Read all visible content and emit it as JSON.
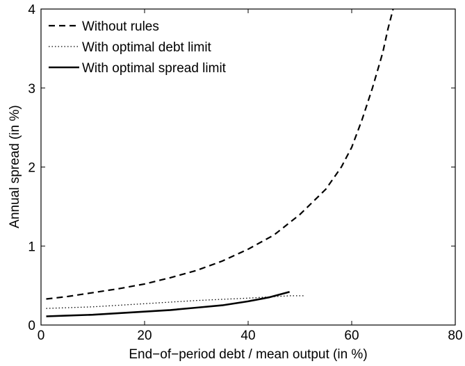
{
  "chart_data": {
    "type": "line",
    "title": "",
    "xlabel": "End−of−period debt / mean output (in %)",
    "ylabel": "Annual spread (in %)",
    "xlim": [
      0,
      80
    ],
    "ylim": [
      0,
      4
    ],
    "xticks": [
      0,
      20,
      40,
      60,
      80
    ],
    "yticks": [
      0,
      1,
      2,
      3,
      4
    ],
    "xtick_labels": [
      "0",
      "20",
      "40",
      "60",
      "80"
    ],
    "ytick_labels": [
      "0",
      "1",
      "2",
      "3",
      "4"
    ],
    "grid": false,
    "legend": "top-left",
    "series": [
      {
        "name": "Without rules",
        "style": "dashed",
        "color": "#000000",
        "x": [
          1,
          5,
          10,
          15,
          20,
          25,
          30,
          35,
          40,
          45,
          50,
          55,
          58,
          60,
          62,
          64,
          66,
          67,
          68
        ],
        "y": [
          0.33,
          0.36,
          0.41,
          0.46,
          0.52,
          0.6,
          0.69,
          0.81,
          0.96,
          1.14,
          1.4,
          1.72,
          2.0,
          2.25,
          2.6,
          3.0,
          3.45,
          3.75,
          4.0
        ]
      },
      {
        "name": "With optimal debt limit",
        "style": "dotted",
        "color": "#000000",
        "x": [
          1,
          10,
          20,
          30,
          40,
          45,
          48,
          51
        ],
        "y": [
          0.21,
          0.23,
          0.27,
          0.31,
          0.34,
          0.36,
          0.37,
          0.37
        ]
      },
      {
        "name": "With optimal spread limit",
        "style": "solid",
        "color": "#000000",
        "x": [
          1,
          5,
          10,
          15,
          20,
          25,
          30,
          35,
          40,
          44,
          48
        ],
        "y": [
          0.11,
          0.12,
          0.13,
          0.15,
          0.17,
          0.19,
          0.22,
          0.25,
          0.3,
          0.35,
          0.42
        ]
      }
    ]
  }
}
